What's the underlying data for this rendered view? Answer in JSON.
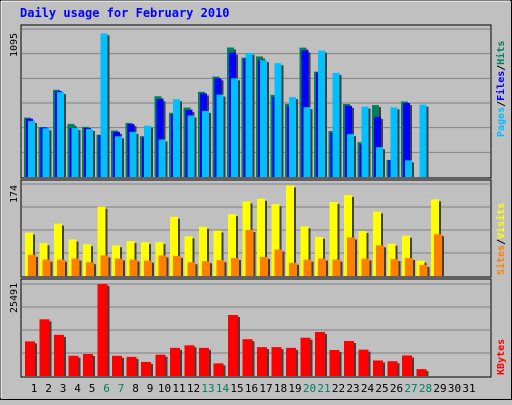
{
  "chart_data": [
    {
      "type": "bar",
      "title": "Daily usage for February 2010",
      "categories": [
        "1",
        "2",
        "3",
        "4",
        "5",
        "6",
        "7",
        "8",
        "9",
        "10",
        "11",
        "12",
        "13",
        "14",
        "15",
        "16",
        "17",
        "18",
        "19",
        "20",
        "21",
        "22",
        "23",
        "24",
        "25",
        "26",
        "27",
        "28",
        "29",
        "30",
        "31"
      ],
      "weekend_days": [
        "6",
        "7",
        "13",
        "14",
        "20",
        "21",
        "27",
        "28"
      ],
      "panels": [
        {
          "id": "top",
          "max_label": "1095",
          "ylim": [
            0,
            1095
          ],
          "legend": [
            "Pages",
            "Files",
            "Hits"
          ],
          "series": [
            {
              "name": "Hits",
              "values": [
                439,
                368,
                645,
                393,
                371,
                313,
                344,
                400,
                302,
                597,
                475,
                514,
                630,
                743,
                958,
                883,
                892,
                608,
                541,
                957,
                779,
                340,
                540,
                258,
                532,
                126,
                559,
                0,
                0,
                0,
                0
              ]
            },
            {
              "name": "Files",
              "values": [
                431,
                367,
                636,
                362,
                363,
                309,
                334,
                391,
                296,
                575,
                463,
                495,
                618,
                730,
                920,
                878,
                863,
                593,
                525,
                936,
                772,
                327,
                527,
                243,
                445,
                126,
                547,
                0,
                0,
                0,
                0
              ]
            },
            {
              "name": "Pages",
              "values": [
                414,
                360,
                628,
                362,
                355,
                1063,
                301,
                334,
                380,
                278,
                575,
                455,
                489,
                610,
                730,
                919,
                864,
                842,
                591,
                517,
                935,
                770,
                317,
                521,
                221,
                515,
                123,
                535,
                0,
                0,
                0
              ]
            }
          ]
        },
        {
          "id": "middle",
          "max_label": "174",
          "ylim": [
            0,
            174
          ],
          "legend": [
            "Sites",
            "Visits"
          ],
          "series": [
            {
              "name": "Visits",
              "values": [
                82,
                62,
                99,
                69,
                60,
                131,
                58,
                66,
                64,
                64,
                112,
                75,
                93,
                86,
                117,
                141,
                146,
                136,
                171,
                94,
                74,
                140,
                153,
                85,
                122,
                61,
                76,
                29,
                145,
                0,
                0
              ]
            },
            {
              "name": "Sites",
              "values": [
                40,
                31,
                31,
                33,
                26,
                39,
                33,
                31,
                29,
                39,
                38,
                26,
                28,
                30,
                34,
                87,
                36,
                50,
                25,
                31,
                33,
                31,
                73,
                33,
                58,
                32,
                34,
                21,
                79,
                0,
                0
              ]
            }
          ]
        },
        {
          "id": "bottom",
          "max_label": "25491",
          "ylim": [
            0,
            25491
          ],
          "legend": [
            "KBytes"
          ],
          "series": [
            {
              "name": "KBytes",
              "values": [
                9600,
                15700,
                11400,
                5600,
                6100,
                25491,
                5600,
                5300,
                3900,
                5900,
                7800,
                8500,
                7800,
                3500,
                16900,
                10200,
                8000,
                8000,
                7800,
                10600,
                12200,
                7200,
                9700,
                7300,
                4300,
                4100,
                5700,
                1900,
                0,
                0,
                0
              ]
            }
          ]
        }
      ]
    }
  ],
  "colors": {
    "background": "#c0c0c0",
    "plot_background": "#c0c0c0",
    "title": "#0000ff",
    "hits": "#00805c",
    "files": "#0000ff",
    "pages": "#00c0ff",
    "visits": "#ffff00",
    "sites": "#ff8000",
    "kbytes": "#ff0000",
    "weekday_label": "#000000",
    "weekend_label": "#00805c"
  }
}
